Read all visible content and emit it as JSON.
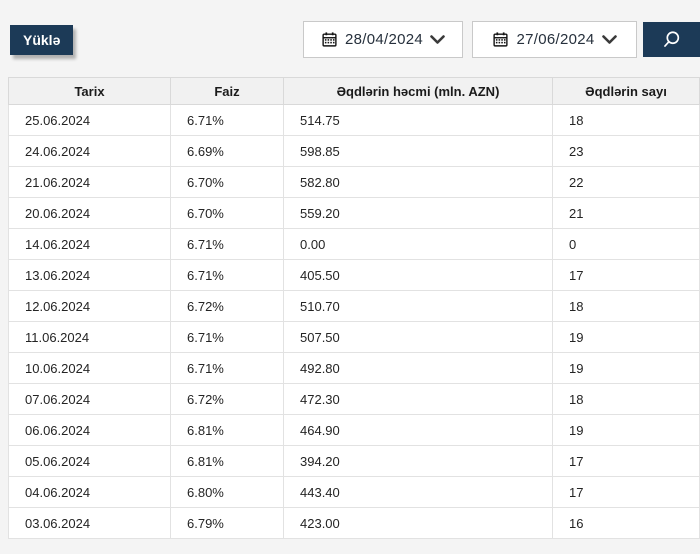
{
  "colors": {
    "accent": "#1c3a57",
    "page_background": "#f4f4f4",
    "table_header_background": "#f1f1f1",
    "border": "#d9d9d9"
  },
  "toolbar": {
    "download_label": "Yüklə",
    "date_from": "28/04/2024",
    "date_to": "27/06/2024",
    "icons": {
      "date_from": "calendar-icon",
      "date_to": "calendar-icon",
      "date_expand": "chevron-down-icon",
      "search": "search-icon"
    }
  },
  "table": {
    "headers": [
      "Tarix",
      "Faiz",
      "Əqdlərin həcmi (mln. AZN)",
      "Əqdlərin sayı"
    ],
    "rows": [
      [
        "25.06.2024",
        "6.71%",
        "514.75",
        "18"
      ],
      [
        "24.06.2024",
        "6.69%",
        "598.85",
        "23"
      ],
      [
        "21.06.2024",
        "6.70%",
        "582.80",
        "22"
      ],
      [
        "20.06.2024",
        "6.70%",
        "559.20",
        "21"
      ],
      [
        "14.06.2024",
        "6.71%",
        "0.00",
        "0"
      ],
      [
        "13.06.2024",
        "6.71%",
        "405.50",
        "17"
      ],
      [
        "12.06.2024",
        "6.72%",
        "510.70",
        "18"
      ],
      [
        "11.06.2024",
        "6.71%",
        "507.50",
        "19"
      ],
      [
        "10.06.2024",
        "6.71%",
        "492.80",
        "19"
      ],
      [
        "07.06.2024",
        "6.72%",
        "472.30",
        "18"
      ],
      [
        "06.06.2024",
        "6.81%",
        "464.90",
        "19"
      ],
      [
        "05.06.2024",
        "6.81%",
        "394.20",
        "17"
      ],
      [
        "04.06.2024",
        "6.80%",
        "443.40",
        "17"
      ],
      [
        "03.06.2024",
        "6.79%",
        "423.00",
        "16"
      ]
    ]
  }
}
